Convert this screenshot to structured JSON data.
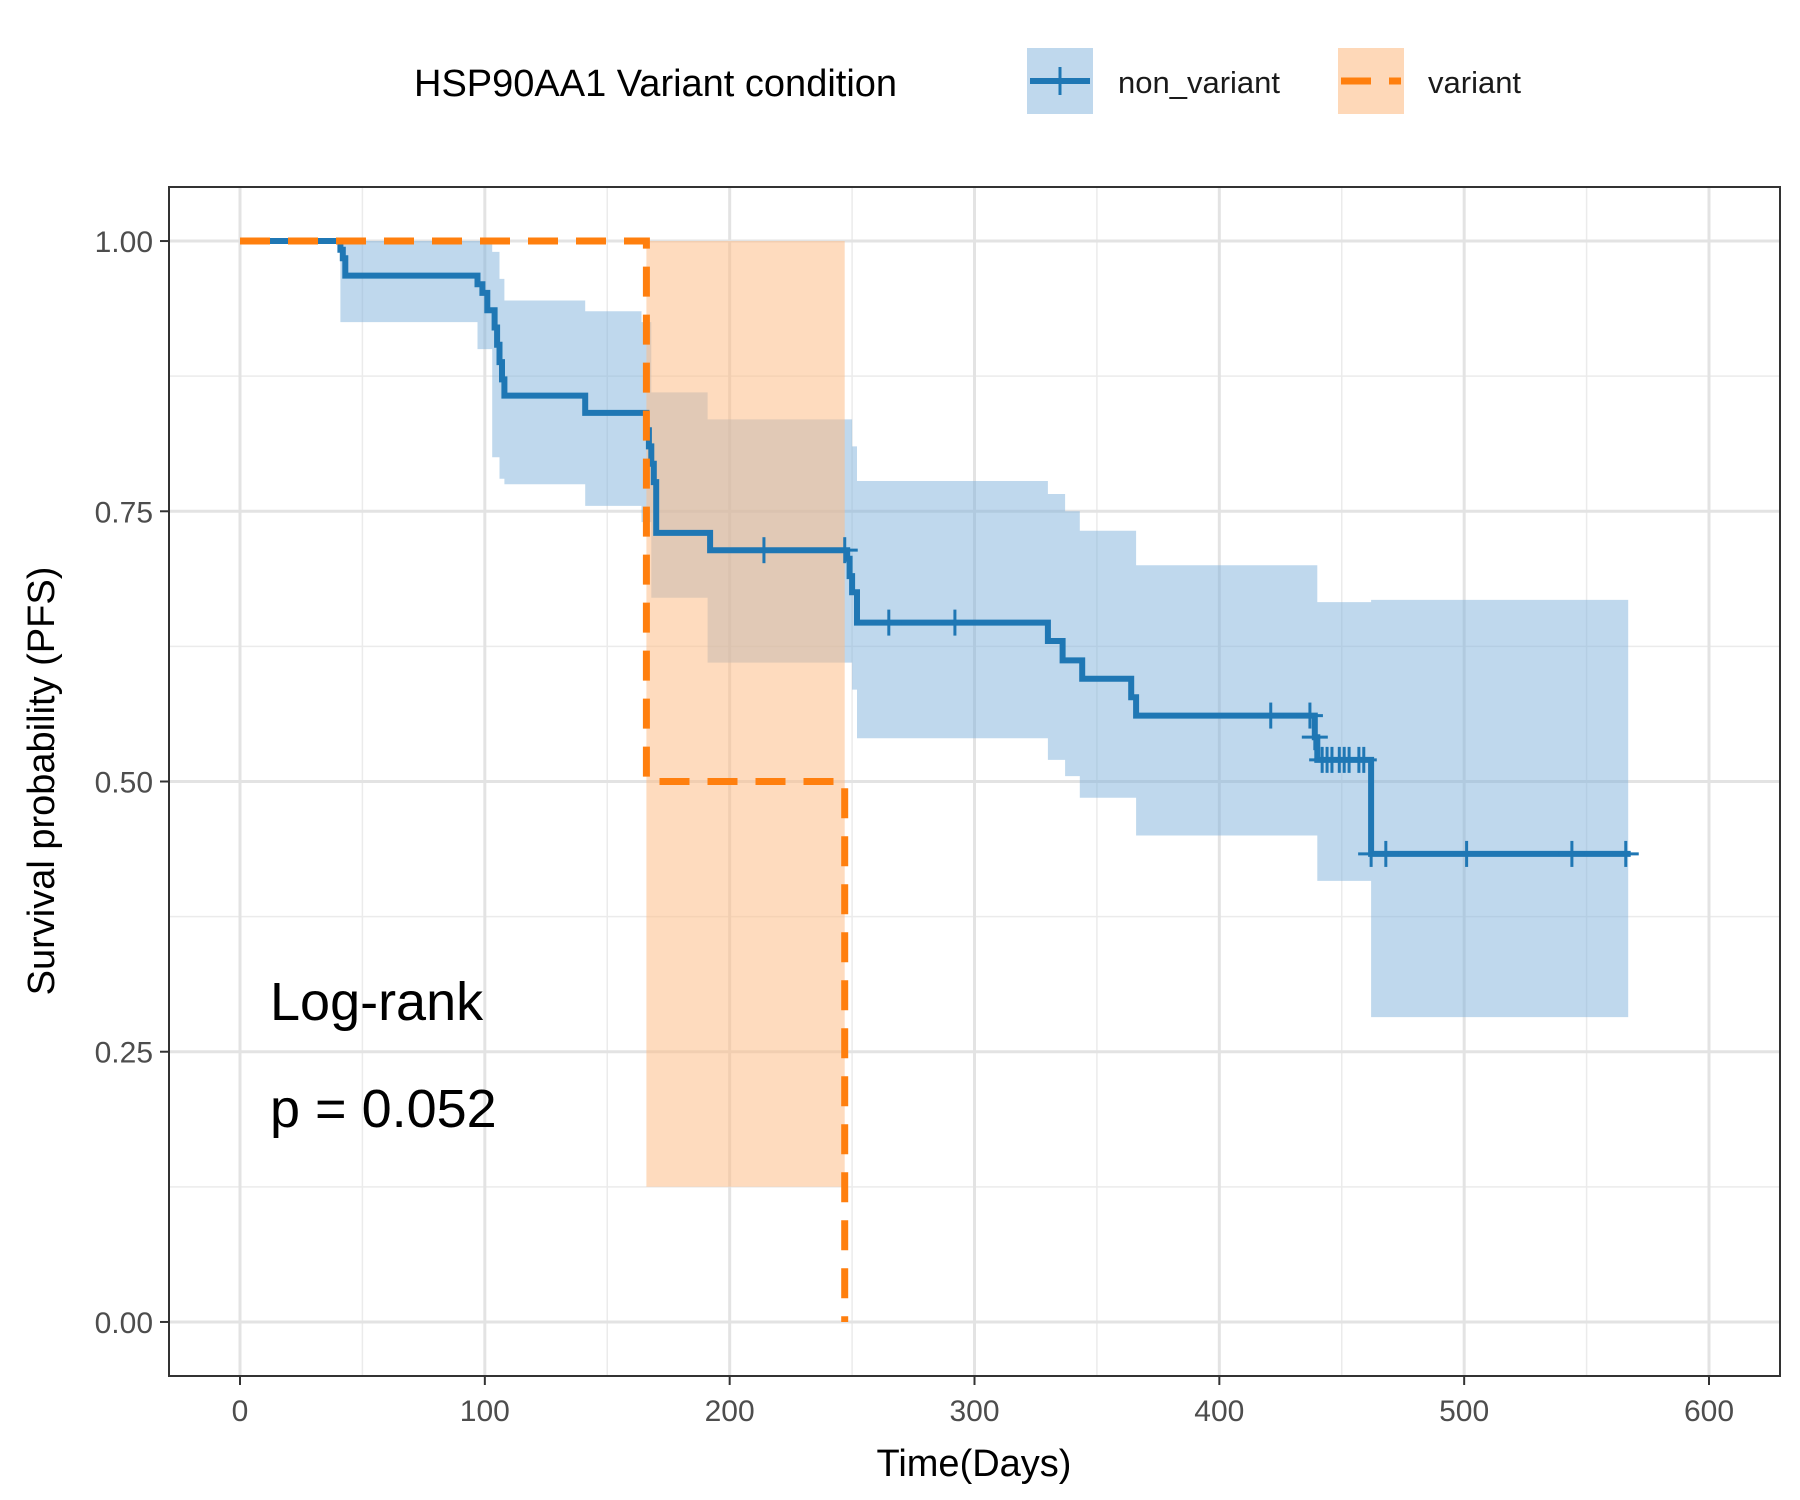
{
  "chart_data": {
    "type": "line",
    "subtype": "kaplan-meier",
    "title": "",
    "xlabel": "Time(Days)",
    "ylabel": "Survival probability (PFS)",
    "xlim": [
      -29,
      629
    ],
    "ylim": [
      -0.05,
      1.05
    ],
    "x_ticks": [
      0,
      100,
      200,
      300,
      400,
      500,
      600
    ],
    "y_ticks": [
      0.0,
      0.25,
      0.5,
      0.75,
      1.0
    ],
    "x_tick_labels": [
      "0",
      "100",
      "200",
      "300",
      "400",
      "500",
      "600"
    ],
    "y_tick_labels": [
      "0.00",
      "0.25",
      "0.50",
      "0.75",
      "1.00"
    ],
    "grid": true,
    "legend": {
      "title": "HSP90AA1 Variant condition",
      "position": "top",
      "entries": [
        "non_variant",
        "variant"
      ]
    },
    "annotations": [
      "Log-rank",
      "p = 0.052"
    ],
    "series": [
      {
        "name": "non_variant",
        "color": "#1f77b4",
        "band_color": "#7fb2db",
        "dash": "solid",
        "steps": [
          [
            0,
            1.0
          ],
          [
            41,
            0.992
          ],
          [
            42,
            0.984
          ],
          [
            43,
            0.968
          ],
          [
            97,
            0.96
          ],
          [
            99,
            0.952
          ],
          [
            101,
            0.936
          ],
          [
            104,
            0.92
          ],
          [
            105,
            0.904
          ],
          [
            106,
            0.888
          ],
          [
            107,
            0.872
          ],
          [
            108,
            0.857
          ],
          [
            141,
            0.841
          ],
          [
            166,
            0.825
          ],
          [
            167,
            0.81
          ],
          [
            168,
            0.794
          ],
          [
            169,
            0.777
          ],
          [
            170,
            0.73
          ],
          [
            192,
            0.714
          ],
          [
            248,
            0.706
          ],
          [
            249,
            0.69
          ],
          [
            250,
            0.675
          ],
          [
            252,
            0.647
          ],
          [
            330,
            0.63
          ],
          [
            336,
            0.612
          ],
          [
            344,
            0.595
          ],
          [
            364,
            0.578
          ],
          [
            366,
            0.561
          ],
          [
            439,
            0.541
          ],
          [
            440,
            0.52
          ],
          [
            462,
            0.433
          ],
          [
            568,
            0.433
          ]
        ],
        "band": [
          [
            0,
            1.0,
            1.0
          ],
          [
            41,
            1.0,
            0.925
          ],
          [
            97,
            1.0,
            0.9
          ],
          [
            103,
            0.99,
            0.8
          ],
          [
            106,
            0.965,
            0.78
          ],
          [
            108,
            0.945,
            0.775
          ],
          [
            141,
            0.935,
            0.755
          ],
          [
            164,
            0.925,
            0.74
          ],
          [
            168,
            0.86,
            0.67
          ],
          [
            191,
            0.835,
            0.61
          ],
          [
            250,
            0.81,
            0.585
          ],
          [
            252,
            0.778,
            0.54
          ],
          [
            330,
            0.766,
            0.52
          ],
          [
            337,
            0.75,
            0.505
          ],
          [
            343,
            0.732,
            0.485
          ],
          [
            366,
            0.7,
            0.45
          ],
          [
            440,
            0.666,
            0.408
          ],
          [
            462,
            0.668,
            0.282
          ],
          [
            567,
            0.668,
            0.282
          ]
        ],
        "censor_x": [
          214,
          247,
          265,
          292,
          421,
          437,
          439,
          442,
          444,
          446,
          449,
          451,
          453,
          457,
          459,
          462,
          468,
          501,
          544,
          566
        ]
      },
      {
        "name": "variant",
        "color": "#ff7f0e",
        "band_color": "#fdbe89",
        "dash": "dashed",
        "steps": [
          [
            0,
            1.0
          ],
          [
            166,
            0.5
          ],
          [
            247,
            0.0
          ]
        ],
        "band": [
          [
            166,
            1.0,
            0.125
          ],
          [
            247,
            1.0,
            0.125
          ]
        ],
        "censor_x": []
      }
    ]
  }
}
